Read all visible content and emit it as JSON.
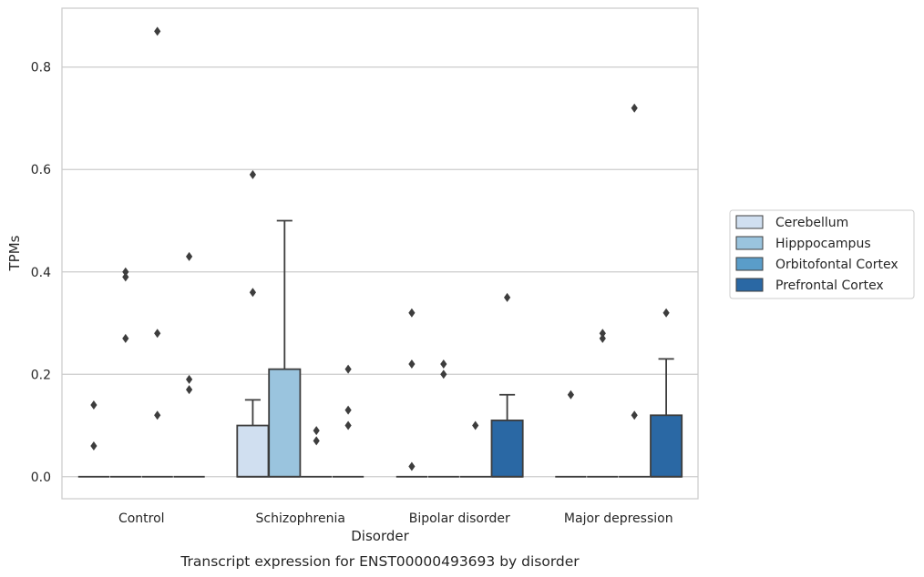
{
  "chart_data": {
    "type": "box",
    "caption": "Transcript expression for ENST00000493693 by disorder",
    "xlabel": "Disorder",
    "ylabel": "TPMs",
    "ylim": [
      -0.043,
      0.915
    ],
    "yticks": [
      0.0,
      0.2,
      0.4,
      0.6,
      0.8
    ],
    "ytick_labels": [
      "0.0",
      "0.2",
      "0.4",
      "0.6",
      "0.8"
    ],
    "grid": "horizontal",
    "legend_position": "right",
    "categories": [
      "Control",
      "Schizophrenia",
      "Bipolar disorder",
      "Major depression"
    ],
    "series": [
      {
        "name": "Cerebellum",
        "color": "#d0dff0",
        "boxes": [
          {
            "q1": 0,
            "median": 0,
            "q3": 0,
            "whisker_low": 0,
            "whisker_high": 0,
            "outliers": [
              0.06,
              0.14
            ]
          },
          {
            "q1": 0,
            "median": 0,
            "q3": 0.1,
            "whisker_low": 0,
            "whisker_high": 0.15,
            "outliers": [
              0.36,
              0.59
            ]
          },
          {
            "q1": 0,
            "median": 0,
            "q3": 0,
            "whisker_low": 0,
            "whisker_high": 0,
            "outliers": [
              0.02,
              0.22,
              0.32
            ]
          },
          {
            "q1": 0,
            "median": 0,
            "q3": 0,
            "whisker_low": 0,
            "whisker_high": 0,
            "outliers": [
              0.16
            ]
          }
        ]
      },
      {
        "name": "Hipppocampus",
        "color": "#9ac4de",
        "boxes": [
          {
            "q1": 0,
            "median": 0,
            "q3": 0,
            "whisker_low": 0,
            "whisker_high": 0,
            "outliers": [
              0.27,
              0.39,
              0.4
            ]
          },
          {
            "q1": 0,
            "median": 0,
            "q3": 0.21,
            "whisker_low": 0,
            "whisker_high": 0.5,
            "outliers": []
          },
          {
            "q1": 0,
            "median": 0,
            "q3": 0,
            "whisker_low": 0,
            "whisker_high": 0,
            "outliers": [
              0.2,
              0.22
            ]
          },
          {
            "q1": 0,
            "median": 0,
            "q3": 0,
            "whisker_low": 0,
            "whisker_high": 0,
            "outliers": [
              0.27,
              0.28
            ]
          }
        ]
      },
      {
        "name": "Orbitofontal Cortex",
        "color": "#5a9dc9",
        "boxes": [
          {
            "q1": 0,
            "median": 0,
            "q3": 0,
            "whisker_low": 0,
            "whisker_high": 0,
            "outliers": [
              0.12,
              0.28,
              0.87
            ]
          },
          {
            "q1": 0,
            "median": 0,
            "q3": 0,
            "whisker_low": 0,
            "whisker_high": 0,
            "outliers": [
              0.07,
              0.09
            ]
          },
          {
            "q1": 0,
            "median": 0,
            "q3": 0,
            "whisker_low": 0,
            "whisker_high": 0,
            "outliers": [
              0.1
            ]
          },
          {
            "q1": 0,
            "median": 0,
            "q3": 0,
            "whisker_low": 0,
            "whisker_high": 0,
            "outliers": [
              0.12,
              0.72
            ]
          }
        ]
      },
      {
        "name": "Prefrontal Cortex",
        "color": "#2a68a4",
        "boxes": [
          {
            "q1": 0,
            "median": 0,
            "q3": 0,
            "whisker_low": 0,
            "whisker_high": 0,
            "outliers": [
              0.17,
              0.19,
              0.43
            ]
          },
          {
            "q1": 0,
            "median": 0,
            "q3": 0,
            "whisker_low": 0,
            "whisker_high": 0,
            "outliers": [
              0.1,
              0.13,
              0.21
            ]
          },
          {
            "q1": 0,
            "median": 0,
            "q3": 0.11,
            "whisker_low": 0,
            "whisker_high": 0.16,
            "outliers": [
              0.35
            ]
          },
          {
            "q1": 0,
            "median": 0,
            "q3": 0.12,
            "whisker_low": 0,
            "whisker_high": 0.23,
            "outliers": [
              0.32
            ]
          }
        ]
      }
    ]
  }
}
